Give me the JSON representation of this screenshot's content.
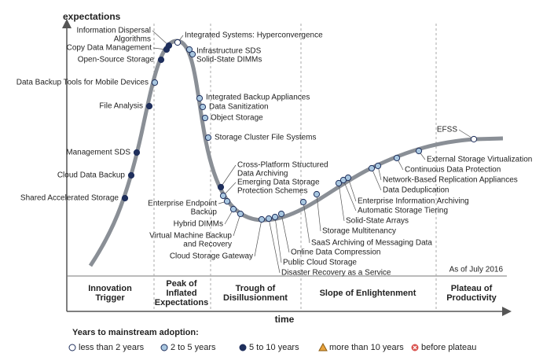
{
  "axes": {
    "y": "expectations",
    "x": "time"
  },
  "as_of": "As of July 2016",
  "phases": [
    [
      "Innovation",
      "Trigger"
    ],
    [
      "Peak of",
      "Inflated",
      "Expectations"
    ],
    [
      "Trough of",
      "Disillusionment"
    ],
    [
      "Slope of Enlightenment"
    ],
    [
      "Plateau of",
      "Productivity"
    ]
  ],
  "legend": {
    "title": "Years to mainstream adoption:",
    "items": [
      {
        "label": "less than 2 years",
        "color": "#ffffff"
      },
      {
        "label": "2 to 5 years",
        "color": "#a9c7e0"
      },
      {
        "label": "5 to 10 years",
        "color": "#1f2f5c"
      },
      {
        "label": "more than 10 years",
        "color": "#e8a33d"
      },
      {
        "label": "before plateau",
        "color": "#d9534f"
      }
    ]
  },
  "nodes": [
    {
      "label": [
        "Information Dispersal",
        "Algorithms"
      ],
      "adoption": "5 to 10 years"
    },
    {
      "label": [
        "Copy Data Management"
      ],
      "adoption": "5 to 10 years"
    },
    {
      "label": [
        "Open-Source Storage"
      ],
      "adoption": "5 to 10 years"
    },
    {
      "label": [
        "Data Backup Tools for Mobile Devices"
      ],
      "adoption": "2 to 5 years"
    },
    {
      "label": [
        "File Analysis"
      ],
      "adoption": "5 to 10 years"
    },
    {
      "label": [
        "Management SDS"
      ],
      "adoption": "5 to 10 years"
    },
    {
      "label": [
        "Cloud Data Backup"
      ],
      "adoption": "5 to 10 years"
    },
    {
      "label": [
        "Shared Accelerated Storage"
      ],
      "adoption": "5 to 10 years"
    },
    {
      "label": [
        "Integrated Systems: Hyperconvergence"
      ],
      "adoption": "less than 2 years"
    },
    {
      "label": [
        "Infrastructure SDS"
      ],
      "adoption": "2 to 5 years"
    },
    {
      "label": [
        "Solid-State DIMMs"
      ],
      "adoption": "2 to 5 years"
    },
    {
      "label": [
        "Integrated Backup Appliances"
      ],
      "adoption": "2 to 5 years"
    },
    {
      "label": [
        "Data Sanitization"
      ],
      "adoption": "2 to 5 years"
    },
    {
      "label": [
        "Object Storage"
      ],
      "adoption": "2 to 5 years"
    },
    {
      "label": [
        "Storage Cluster File Systems"
      ],
      "adoption": "2 to 5 years"
    },
    {
      "label": [
        "Cross-Platform Structured",
        "Data Archiving"
      ],
      "adoption": "5 to 10 years"
    },
    {
      "label": [
        "Emerging Data Storage",
        "Protection Schemes"
      ],
      "adoption": "2 to 5 years"
    },
    {
      "label": [
        "Enterprise Endpoint",
        "Backup"
      ],
      "adoption": "2 to 5 years"
    },
    {
      "label": [
        "Hybrid DIMMs"
      ],
      "adoption": "2 to 5 years"
    },
    {
      "label": [
        "Virtual Machine Backup",
        "and Recovery"
      ],
      "adoption": "2 to 5 years"
    },
    {
      "label": [
        "Cloud Storage Gateway"
      ],
      "adoption": "2 to 5 years"
    },
    {
      "label": [
        "Disaster Recovery as a Service"
      ],
      "adoption": "2 to 5 years"
    },
    {
      "label": [
        "Public Cloud Storage"
      ],
      "adoption": "2 to 5 years"
    },
    {
      "label": [
        "Online Data Compression"
      ],
      "adoption": "2 to 5 years"
    },
    {
      "label": [
        "SaaS Archiving of Messaging Data"
      ],
      "adoption": "2 to 5 years"
    },
    {
      "label": [
        "Storage Multitenancy"
      ],
      "adoption": "2 to 5 years"
    },
    {
      "label": [
        "Solid-State Arrays"
      ],
      "adoption": "2 to 5 years"
    },
    {
      "label": [
        "Automatic Storage Tiering"
      ],
      "adoption": "2 to 5 years"
    },
    {
      "label": [
        "Enterprise Information Archiving"
      ],
      "adoption": "2 to 5 years"
    },
    {
      "label": [
        "Data Deduplication"
      ],
      "adoption": "2 to 5 years"
    },
    {
      "label": [
        "Network-Based Replication Appliances"
      ],
      "adoption": "2 to 5 years"
    },
    {
      "label": [
        "Continuous Data Protection"
      ],
      "adoption": "2 to 5 years"
    },
    {
      "label": [
        "External Storage Virtualization"
      ],
      "adoption": "2 to 5 years"
    },
    {
      "label": [
        "EFSS"
      ],
      "adoption": "less than 2 years"
    }
  ]
}
